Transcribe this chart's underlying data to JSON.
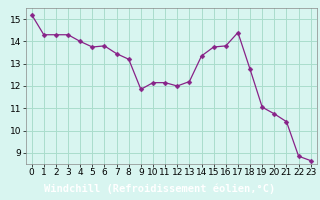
{
  "x": [
    0,
    1,
    2,
    3,
    4,
    5,
    6,
    7,
    8,
    9,
    10,
    11,
    12,
    13,
    14,
    15,
    16,
    17,
    18,
    19,
    20,
    21,
    22,
    23
  ],
  "y": [
    15.2,
    14.3,
    14.3,
    14.3,
    14.0,
    13.75,
    13.8,
    13.45,
    13.2,
    11.85,
    12.15,
    12.15,
    12.0,
    12.2,
    13.35,
    13.75,
    13.8,
    14.4,
    12.75,
    11.05,
    10.75,
    10.4,
    8.85,
    8.65
  ],
  "line_color": "#882288",
  "marker": "D",
  "marker_size": 2.5,
  "bg_color": "#d8f5f0",
  "grid_color": "#aaddcc",
  "xlabel": "Windchill (Refroidissement éolien,°C)",
  "xlabel_bg": "#882299",
  "xlabel_color": "#ffffff",
  "xlabel_fontsize": 7.5,
  "tick_fontsize": 6.5,
  "ylim": [
    8.5,
    15.5
  ],
  "xlim": [
    -0.5,
    23.5
  ],
  "yticks": [
    9,
    10,
    11,
    12,
    13,
    14,
    15
  ],
  "xticks": [
    0,
    1,
    2,
    3,
    4,
    5,
    6,
    7,
    8,
    9,
    10,
    11,
    12,
    13,
    14,
    15,
    16,
    17,
    18,
    19,
    20,
    21,
    22,
    23
  ]
}
